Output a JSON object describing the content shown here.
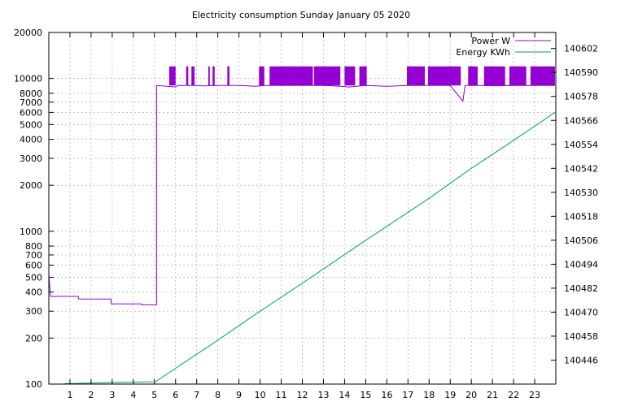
{
  "chart_data": {
    "type": "line",
    "title": "Electricity consumption Sunday January 05 2020",
    "xlim": [
      0,
      24
    ],
    "x_ticks": [
      1,
      2,
      3,
      4,
      5,
      6,
      7,
      8,
      9,
      10,
      11,
      12,
      13,
      14,
      15,
      16,
      17,
      18,
      19,
      20,
      21,
      22,
      23
    ],
    "y_left": {
      "scale": "log",
      "lim": [
        100,
        20000
      ],
      "ticks": [
        100,
        200,
        300,
        400,
        500,
        600,
        700,
        800,
        1000,
        2000,
        3000,
        4000,
        5000,
        6000,
        7000,
        8000,
        10000,
        20000
      ]
    },
    "y_right": {
      "scale": "linear",
      "lim": [
        140434,
        140610
      ],
      "ticks": [
        140446,
        140458,
        140470,
        140482,
        140494,
        140506,
        140518,
        140530,
        140542,
        140554,
        140566,
        140578,
        140590,
        140602
      ]
    },
    "grid": true,
    "legend_position": "top-right",
    "series": [
      {
        "name": "Power W",
        "axis": "left",
        "color": "#9400d3",
        "points": [
          [
            0.0,
            520
          ],
          [
            0.08,
            375
          ],
          [
            1.4,
            375
          ],
          [
            1.4,
            360
          ],
          [
            2.95,
            360
          ],
          [
            2.95,
            335
          ],
          [
            4.4,
            335
          ],
          [
            4.4,
            330
          ],
          [
            5.1,
            330
          ],
          [
            5.1,
            9000
          ],
          [
            5.6,
            8900
          ],
          [
            6.0,
            8800
          ],
          [
            6.1,
            9000
          ],
          [
            6.6,
            9000
          ],
          [
            6.9,
            9000
          ],
          [
            7.4,
            8950
          ],
          [
            8.0,
            9000
          ],
          [
            9.0,
            9000
          ],
          [
            9.8,
            8900
          ],
          [
            10.2,
            9000
          ],
          [
            11.0,
            9000
          ],
          [
            12.0,
            9000
          ],
          [
            13.0,
            9000
          ],
          [
            13.8,
            8900
          ],
          [
            14.2,
            8800
          ],
          [
            15.0,
            9000
          ],
          [
            16.0,
            8900
          ],
          [
            17.0,
            9000
          ],
          [
            18.0,
            9000
          ],
          [
            19.0,
            9000
          ],
          [
            19.6,
            7100
          ],
          [
            19.7,
            9000
          ],
          [
            20.4,
            9000
          ],
          [
            21.2,
            8950
          ],
          [
            22.0,
            9000
          ],
          [
            22.8,
            9000
          ],
          [
            23.96,
            9000
          ]
        ],
        "high_cycles": [
          [
            5.7,
            6.0
          ],
          [
            6.5,
            6.6
          ],
          [
            6.75,
            6.9
          ],
          [
            7.55,
            7.62
          ],
          [
            7.75,
            7.85
          ],
          [
            8.45,
            8.55
          ],
          [
            9.95,
            10.2
          ],
          [
            10.45,
            11.5
          ],
          [
            11.5,
            12.5
          ],
          [
            12.55,
            13.8
          ],
          [
            14.0,
            14.5
          ],
          [
            14.7,
            15.05
          ],
          [
            16.95,
            17.8
          ],
          [
            17.95,
            19.5
          ],
          [
            19.85,
            20.3
          ],
          [
            20.6,
            21.6
          ],
          [
            21.8,
            22.6
          ],
          [
            22.8,
            23.96
          ]
        ],
        "high_level": 12000
      },
      {
        "name": "Energy KWh",
        "axis": "right",
        "color": "#009e73",
        "points": [
          [
            0.75,
            140434.2
          ],
          [
            5.05,
            140435.2
          ],
          [
            8.0,
            140456.0
          ],
          [
            10.0,
            140470.5
          ],
          [
            12.0,
            140484.5
          ],
          [
            15.0,
            140506.0
          ],
          [
            18.0,
            140527.0
          ],
          [
            20.0,
            140542.0
          ],
          [
            22.0,
            140556.0
          ],
          [
            23.96,
            140570.0
          ]
        ]
      }
    ]
  }
}
